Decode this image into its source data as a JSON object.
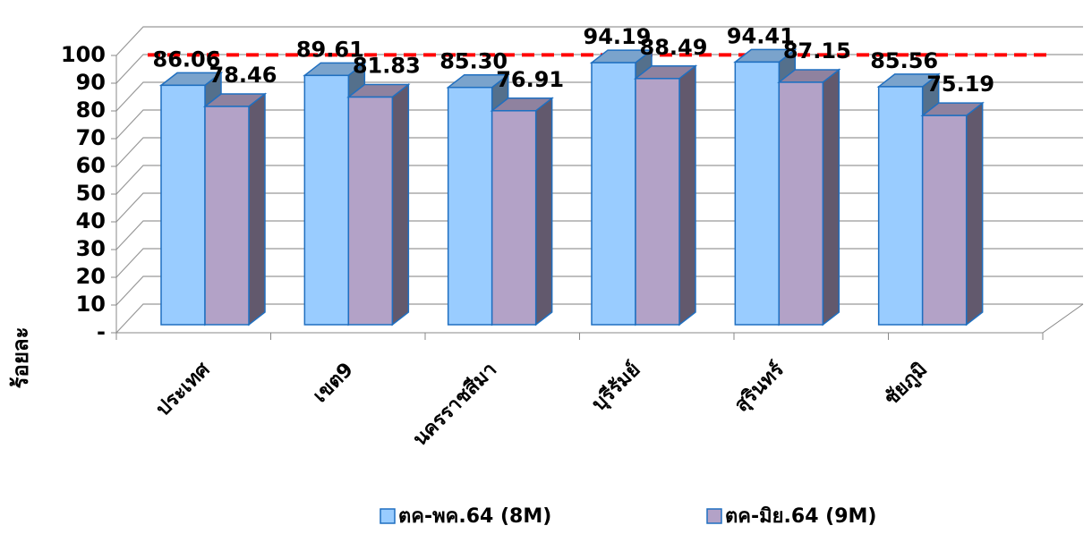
{
  "chart_data": {
    "type": "bar3d",
    "categories": [
      "ประเทศ",
      "เขต9",
      "นครราชสีมา",
      "บุรีรัมย์",
      "สุรินทร์",
      "ชัยภูมิ"
    ],
    "y_label": "ร้อยละ",
    "series": [
      {
        "name": "ตค-พค.64 (8M)",
        "color": "#99ccff",
        "values": [
          86.06,
          89.61,
          85.3,
          94.19,
          94.41,
          85.56
        ],
        "value_labels": [
          "86.06",
          "89.61",
          "85.30",
          "94.19",
          "94.41",
          "85.56"
        ]
      },
      {
        "name": "ตค-มิย.64 (9M)",
        "color": "#b3a2c7",
        "values": [
          78.46,
          81.83,
          76.91,
          88.49,
          87.15,
          75.19
        ],
        "value_labels": [
          "78.46",
          "81.83",
          "76.91",
          "88.49",
          "87.15",
          "75.19"
        ]
      }
    ],
    "target_line": 97,
    "target_color": "#ff0000",
    "ylim": [
      0,
      100
    ],
    "yticks": [
      {
        "value": 0,
        "label": "-"
      },
      10,
      20,
      30,
      40,
      50,
      60,
      70,
      80,
      90,
      100
    ],
    "grid": true
  }
}
